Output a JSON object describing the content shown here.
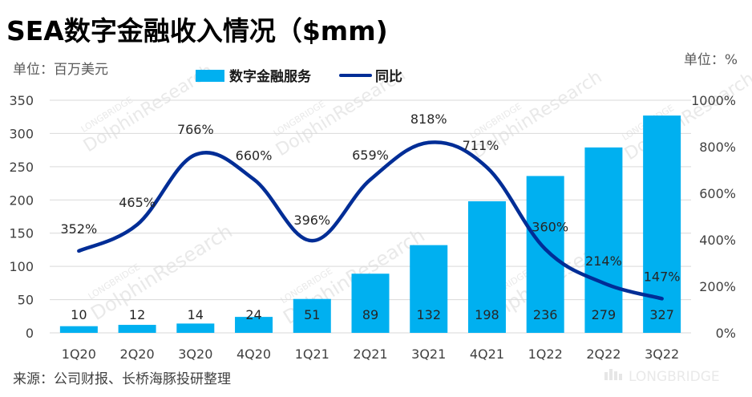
{
  "title": "SEA数字金融收入情况（$mm)",
  "left_unit": "单位：百万美元",
  "right_unit": "单位：%",
  "source": "来源：公司财报、长桥海豚投研整理",
  "watermark": {
    "brand": "DolphinResearch",
    "brand_small": "LONGBRIDGE",
    "corner": "LONGBRIDGE"
  },
  "colors": {
    "bar": "#00b0f0",
    "line": "#002d96",
    "grid": "#d9d9d9"
  },
  "chart_data": {
    "type": "bar",
    "categories": [
      "1Q20",
      "2Q20",
      "3Q20",
      "4Q20",
      "1Q21",
      "2Q21",
      "3Q21",
      "4Q21",
      "1Q22",
      "2Q22",
      "3Q22"
    ],
    "series": [
      {
        "name": "数字金融服务",
        "type": "bar",
        "axis": "left",
        "values": [
          10,
          12,
          14,
          24,
          51,
          89,
          132,
          198,
          236,
          279,
          327
        ],
        "labels": [
          "10",
          "12",
          "14",
          "24",
          "51",
          "89",
          "132",
          "198",
          "236",
          "279",
          "327"
        ]
      },
      {
        "name": "同比",
        "type": "line",
        "axis": "right",
        "values": [
          352,
          465,
          766,
          660,
          396,
          659,
          818,
          711,
          360,
          214,
          147
        ],
        "labels": [
          "352%",
          "465%",
          "766%",
          "660%",
          "396%",
          "659%",
          "818%",
          "711%",
          "360%",
          "214%",
          "147%"
        ]
      }
    ],
    "y_left": {
      "range": [
        0,
        350
      ],
      "ticks": [
        "0",
        "50",
        "100",
        "150",
        "200",
        "250",
        "300",
        "350"
      ]
    },
    "y_right": {
      "range": [
        0,
        1000
      ],
      "ticks": [
        "0%",
        "200%",
        "400%",
        "600%",
        "800%",
        "1000%"
      ]
    },
    "grid": true,
    "legend": "top-center"
  }
}
